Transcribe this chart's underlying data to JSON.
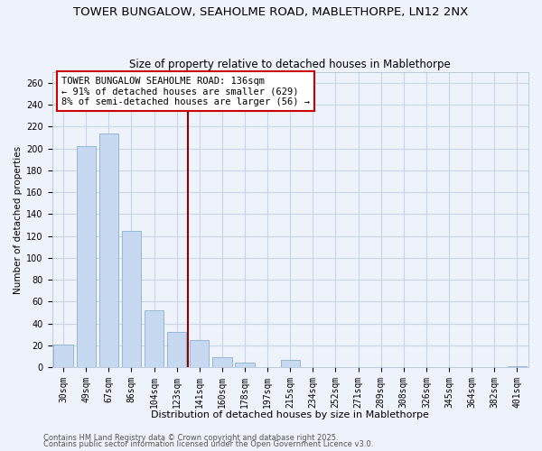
{
  "title": "TOWER BUNGALOW, SEAHOLME ROAD, MABLETHORPE, LN12 2NX",
  "subtitle": "Size of property relative to detached houses in Mablethorpe",
  "xlabel": "Distribution of detached houses by size in Mablethorpe",
  "ylabel": "Number of detached properties",
  "bar_labels": [
    "30sqm",
    "49sqm",
    "67sqm",
    "86sqm",
    "104sqm",
    "123sqm",
    "141sqm",
    "160sqm",
    "178sqm",
    "197sqm",
    "215sqm",
    "234sqm",
    "252sqm",
    "271sqm",
    "289sqm",
    "308sqm",
    "326sqm",
    "345sqm",
    "364sqm",
    "382sqm",
    "401sqm"
  ],
  "bar_values": [
    21,
    202,
    214,
    125,
    52,
    32,
    25,
    9,
    4,
    0,
    7,
    0,
    0,
    0,
    0,
    0,
    0,
    0,
    0,
    0,
    1
  ],
  "bar_color": "#c6d9f0",
  "bar_edge_color": "#8ab0d0",
  "vline_x_index": 6,
  "vline_color": "#8b0000",
  "annotation_text": "TOWER BUNGALOW SEAHOLME ROAD: 136sqm\n← 91% of detached houses are smaller (629)\n8% of semi-detached houses are larger (56) →",
  "ylim": [
    0,
    270
  ],
  "yticks": [
    0,
    20,
    40,
    60,
    80,
    100,
    120,
    140,
    160,
    180,
    200,
    220,
    240,
    260
  ],
  "background_color": "#eef2fb",
  "grid_color": "#c8d4e8",
  "footnote1": "Contains HM Land Registry data © Crown copyright and database right 2025.",
  "footnote2": "Contains public sector information licensed under the Open Government Licence v3.0.",
  "title_fontsize": 9.5,
  "subtitle_fontsize": 8.5,
  "xlabel_fontsize": 8,
  "ylabel_fontsize": 7.5,
  "tick_fontsize": 7,
  "annotation_fontsize": 7.5,
  "footnote_fontsize": 6,
  "ann_border_color": "#cc0000"
}
